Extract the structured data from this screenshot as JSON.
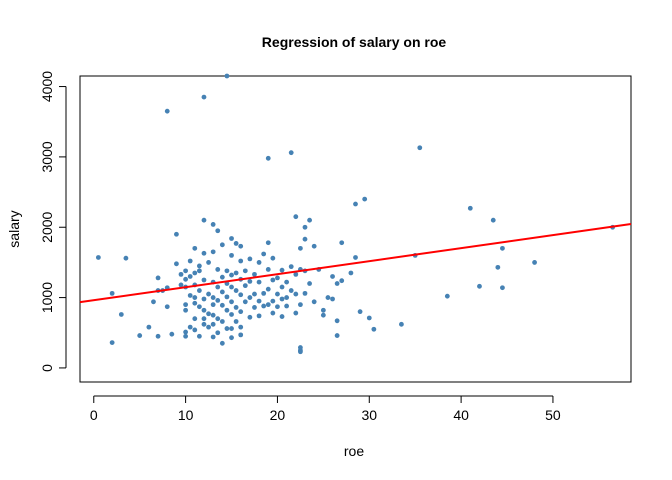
{
  "chart_data": {
    "type": "scatter",
    "title": "Regression of salary on roe",
    "xlabel": "roe",
    "ylabel": "salary",
    "xlim": [
      -1.5,
      58.5
    ],
    "ylim": [
      -200,
      4150
    ],
    "xticks": [
      0,
      10,
      20,
      30,
      40,
      50
    ],
    "yticks": [
      0,
      1000,
      2000,
      3000,
      4000
    ],
    "grid": false,
    "legend": "none",
    "point_color": "#4682B4",
    "line_color": "#FF0000",
    "regression": {
      "intercept": 963.2,
      "slope": 18.5
    },
    "points": [
      [
        0.5,
        1570
      ],
      [
        2,
        1060
      ],
      [
        2,
        360
      ],
      [
        3,
        760
      ],
      [
        3.5,
        1560
      ],
      [
        5,
        460
      ],
      [
        6,
        580
      ],
      [
        6.5,
        940
      ],
      [
        7,
        450
      ],
      [
        7,
        1100
      ],
      [
        7,
        1280
      ],
      [
        7.5,
        1100
      ],
      [
        8,
        3650
      ],
      [
        8,
        1140
      ],
      [
        8,
        870
      ],
      [
        8.5,
        480
      ],
      [
        9,
        1480
      ],
      [
        9,
        1900
      ],
      [
        9.5,
        1330
      ],
      [
        9.5,
        1180
      ],
      [
        10,
        1380
      ],
      [
        10,
        1260
      ],
      [
        10,
        1150
      ],
      [
        10,
        900
      ],
      [
        10,
        820
      ],
      [
        10,
        510
      ],
      [
        10,
        450
      ],
      [
        10.5,
        1520
      ],
      [
        10.5,
        1300
      ],
      [
        10.5,
        1030
      ],
      [
        10.5,
        580
      ],
      [
        11,
        1700
      ],
      [
        11,
        1350
      ],
      [
        11,
        1180
      ],
      [
        11,
        1000
      ],
      [
        11,
        920
      ],
      [
        11,
        700
      ],
      [
        11,
        540
      ],
      [
        11.5,
        1450
      ],
      [
        11.5,
        1380
      ],
      [
        11.5,
        1100
      ],
      [
        11.5,
        870
      ],
      [
        11.5,
        450
      ],
      [
        12,
        2100
      ],
      [
        12,
        3850
      ],
      [
        12,
        1630
      ],
      [
        12,
        1250
      ],
      [
        12,
        980
      ],
      [
        12,
        820
      ],
      [
        12,
        700
      ],
      [
        12,
        620
      ],
      [
        12.5,
        1500
      ],
      [
        12.5,
        1050
      ],
      [
        12.5,
        770
      ],
      [
        12.5,
        580
      ],
      [
        13,
        2040
      ],
      [
        13,
        1650
      ],
      [
        13,
        1220
      ],
      [
        13,
        1000
      ],
      [
        13,
        900
      ],
      [
        13,
        750
      ],
      [
        13,
        620
      ],
      [
        13,
        440
      ],
      [
        13.5,
        1950
      ],
      [
        13.5,
        1400
      ],
      [
        13.5,
        1150
      ],
      [
        13.5,
        960
      ],
      [
        13.5,
        700
      ],
      [
        13.5,
        500
      ],
      [
        14,
        1750
      ],
      [
        14,
        1290
      ],
      [
        14,
        1080
      ],
      [
        14,
        890
      ],
      [
        14,
        660
      ],
      [
        14,
        350
      ],
      [
        14.5,
        4150
      ],
      [
        14.5,
        1380
      ],
      [
        14.5,
        1200
      ],
      [
        14.5,
        1010
      ],
      [
        14.5,
        820
      ],
      [
        14.5,
        560
      ],
      [
        15,
        1840
      ],
      [
        15,
        1600
      ],
      [
        15,
        1320
      ],
      [
        15,
        1150
      ],
      [
        15,
        940
      ],
      [
        15,
        760
      ],
      [
        15,
        560
      ],
      [
        15,
        430
      ],
      [
        15.5,
        1770
      ],
      [
        15.5,
        1350
      ],
      [
        15.5,
        1100
      ],
      [
        15.5,
        860
      ],
      [
        15.5,
        660
      ],
      [
        16,
        1730
      ],
      [
        16,
        1520
      ],
      [
        16,
        1260
      ],
      [
        16,
        1040
      ],
      [
        16,
        800
      ],
      [
        16,
        580
      ],
      [
        16,
        470
      ],
      [
        16.5,
        1380
      ],
      [
        16.5,
        1170
      ],
      [
        16.5,
        940
      ],
      [
        17,
        1550
      ],
      [
        17,
        1230
      ],
      [
        17,
        1000
      ],
      [
        17,
        720
      ],
      [
        17.5,
        1330
      ],
      [
        17.5,
        1050
      ],
      [
        17.5,
        860
      ],
      [
        18,
        1500
      ],
      [
        18,
        1220
      ],
      [
        18,
        950
      ],
      [
        18,
        740
      ],
      [
        18.5,
        1620
      ],
      [
        18.5,
        1060
      ],
      [
        18.5,
        880
      ],
      [
        19,
        2980
      ],
      [
        19,
        1780
      ],
      [
        19,
        1400
      ],
      [
        19,
        1120
      ],
      [
        19,
        900
      ],
      [
        19.5,
        1560
      ],
      [
        19.5,
        1250
      ],
      [
        19.5,
        950
      ],
      [
        19.5,
        780
      ],
      [
        20,
        1280
      ],
      [
        20,
        1050
      ],
      [
        20,
        870
      ],
      [
        20.5,
        1390
      ],
      [
        20.5,
        1150
      ],
      [
        20.5,
        980
      ],
      [
        20.5,
        730
      ],
      [
        21,
        1220
      ],
      [
        21,
        1000
      ],
      [
        21,
        880
      ],
      [
        21.5,
        3060
      ],
      [
        21.5,
        1440
      ],
      [
        21.5,
        1100
      ],
      [
        22,
        2150
      ],
      [
        22,
        1330
      ],
      [
        22,
        1050
      ],
      [
        22,
        780
      ],
      [
        22.5,
        1700
      ],
      [
        22.5,
        1400
      ],
      [
        22.5,
        900
      ],
      [
        22.5,
        250
      ],
      [
        22.5,
        230
      ],
      [
        22.5,
        290
      ],
      [
        23,
        2000
      ],
      [
        23,
        1830
      ],
      [
        23,
        1380
      ],
      [
        23,
        1060
      ],
      [
        23.5,
        2100
      ],
      [
        23.5,
        1200
      ],
      [
        24,
        1730
      ],
      [
        24,
        940
      ],
      [
        24.5,
        1400
      ],
      [
        25,
        820
      ],
      [
        25,
        750
      ],
      [
        25.5,
        1000
      ],
      [
        26,
        1300
      ],
      [
        26,
        980
      ],
      [
        26.5,
        1200
      ],
      [
        26.5,
        670
      ],
      [
        26.5,
        460
      ],
      [
        27,
        1780
      ],
      [
        27,
        1240
      ],
      [
        28,
        1350
      ],
      [
        28.5,
        2330
      ],
      [
        28.5,
        1570
      ],
      [
        29,
        800
      ],
      [
        29.5,
        2400
      ],
      [
        30,
        710
      ],
      [
        30.5,
        550
      ],
      [
        33.5,
        620
      ],
      [
        35,
        1600
      ],
      [
        35.5,
        3130
      ],
      [
        38.5,
        1020
      ],
      [
        41,
        2270
      ],
      [
        42,
        1160
      ],
      [
        43.5,
        2100
      ],
      [
        44,
        1430
      ],
      [
        44.5,
        1700
      ],
      [
        44.5,
        1140
      ],
      [
        48,
        1500
      ],
      [
        56.5,
        2000
      ]
    ]
  }
}
